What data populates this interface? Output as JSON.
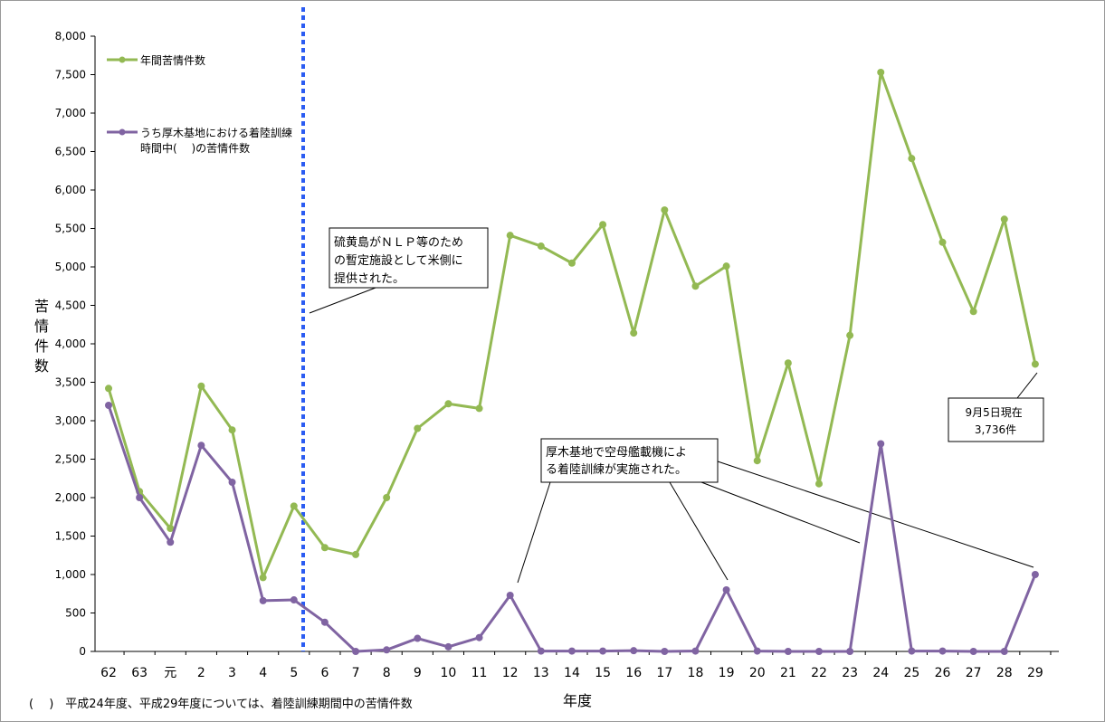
{
  "chart_data": {
    "type": "line",
    "categories": [
      "62",
      "63",
      "元",
      "2",
      "3",
      "4",
      "5",
      "6",
      "7",
      "8",
      "9",
      "10",
      "11",
      "12",
      "13",
      "14",
      "15",
      "16",
      "17",
      "18",
      "19",
      "20",
      "21",
      "22",
      "23",
      "24",
      "25",
      "26",
      "27",
      "28",
      "29"
    ],
    "series": [
      {
        "name": "年間苦情件数",
        "color": "#93b953",
        "values": [
          3420,
          2080,
          1600,
          3450,
          2880,
          960,
          1890,
          1350,
          1260,
          2000,
          2900,
          3220,
          3160,
          5410,
          5270,
          5050,
          5550,
          4140,
          5740,
          4750,
          5010,
          2480,
          3750,
          2180,
          4110,
          7530,
          6410,
          5320,
          4420,
          5620,
          3736
        ]
      },
      {
        "name": "うち厚木基地における着陸訓練時間中(　)の苦情件数",
        "legend_lines": [
          "うち厚木基地における着陸訓練",
          "時間中(　 )の苦情件数"
        ],
        "color": "#8064a2",
        "values": [
          3200,
          2000,
          1420,
          2680,
          2200,
          660,
          670,
          380,
          0,
          20,
          170,
          60,
          180,
          730,
          5,
          5,
          5,
          10,
          0,
          5,
          800,
          5,
          0,
          0,
          0,
          2700,
          5,
          5,
          0,
          0,
          1000
        ]
      }
    ],
    "y_ticks": [
      "0",
      "500",
      "1,000",
      "1,500",
      "2,000",
      "2,500",
      "3,000",
      "3,500",
      "4,000",
      "4,500",
      "5,000",
      "5,500",
      "6,000",
      "6,500",
      "7,000",
      "7,500",
      "8,000"
    ],
    "ylim": [
      0,
      8000
    ],
    "ylabel": "苦情件数",
    "xlabel": "年度",
    "grid": false,
    "legend_position": "top-left",
    "marker_line_after": "5",
    "marker_line_color": "#2b5cf2",
    "annotations": {
      "iwo_jima": [
        "硫黄島がＮＬＰ等のため",
        "の暫定施設として米側に",
        "提供された。"
      ],
      "atsugi": [
        "厚木基地で空母艦載機によ",
        "る着陸訓練が実施された。"
      ],
      "current": [
        "9月5日現在",
        "3,736件"
      ]
    },
    "footnote": "(　 )　平成24年度、平成29年度については、着陸訓練期間中の苦情件数"
  }
}
